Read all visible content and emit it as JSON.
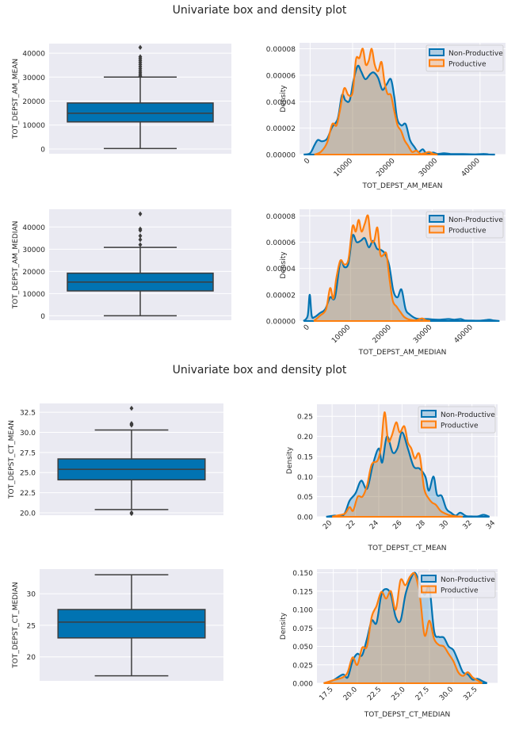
{
  "figures": [
    {
      "suptitle": "Univariate box and density plot"
    },
    {
      "suptitle": "Univariate box and density plot"
    }
  ],
  "colors": {
    "plot_bg": "#eaeaf2",
    "grid": "#ffffff",
    "box_fill": "#0173b2",
    "box_line": "#3d3d3d",
    "non_productive": "#0173b2",
    "productive": "#ff7f0e",
    "text": "#262626"
  },
  "chart_data": [
    {
      "id": "box-am-mean",
      "type": "box",
      "ylabel": "TOT_DEPST_AM_MEAN",
      "xlabel": "",
      "ylim": [
        -2000,
        44000
      ],
      "yticks": [
        0,
        10000,
        20000,
        30000,
        40000
      ],
      "ytick_labels": [
        "0",
        "10000",
        "20000",
        "30000",
        "40000"
      ],
      "stats": {
        "whisker_low": 200,
        "q1": 11300,
        "median": 14900,
        "q3": 19200,
        "whisker_high": 30000
      },
      "outliers": [
        30400,
        31000,
        31800,
        32600,
        33500,
        34400,
        35300,
        36200,
        37000,
        37800,
        38500,
        42400
      ]
    },
    {
      "id": "density-am-mean",
      "type": "area",
      "title": "",
      "xlabel": "TOT_DEPST_AM_MEAN",
      "ylabel": "Density",
      "xlim": [
        -2500,
        46000
      ],
      "ylim": [
        0,
        8.45e-05
      ],
      "xticks": [
        0,
        10000,
        20000,
        30000,
        40000
      ],
      "xtick_labels": [
        "0",
        "10000",
        "20000",
        "30000",
        "40000"
      ],
      "yticks": [
        0,
        2e-05,
        4e-05,
        6e-05,
        8e-05
      ],
      "ytick_labels": [
        "0.00000",
        "0.00002",
        "0.00004",
        "0.00006",
        "0.00008"
      ],
      "legend": {
        "entries": [
          "Non-Productive",
          "Productive"
        ],
        "position": "upper-right"
      },
      "series": [
        {
          "name": "Non-Productive",
          "x": [
            -1500,
            0,
            1000,
            1800,
            2800,
            4000,
            5200,
            6500,
            7500,
            8300,
            9300,
            10200,
            11200,
            12000,
            13000,
            14200,
            15000,
            16000,
            17000,
            18000,
            19000,
            19800,
            20500,
            21500,
            22500,
            23500,
            24500,
            25500,
            26500,
            27300,
            28200,
            29000,
            30000,
            31500,
            33000,
            35000,
            37000,
            39000,
            41000,
            42000,
            43500
          ],
          "y": [
            0,
            1e-06,
            7e-06,
            1.1e-05,
            1e-05,
            1.2e-05,
            2.1e-05,
            2.7e-05,
            4.5e-05,
            4.1e-05,
            4.1e-05,
            5.6e-05,
            6.7e-05,
            6.3e-05,
            5.7e-05,
            6.1e-05,
            6.2e-05,
            5.8e-05,
            4.9e-05,
            5.3e-05,
            5.7e-05,
            4.4e-05,
            2.7e-05,
            2.2e-05,
            2.3e-05,
            1.1e-05,
            6e-06,
            2e-06,
            4e-06,
            1e-06,
            1e-06,
            1.5e-06,
            5e-07,
            1e-06,
            5e-07,
            4e-07,
            3e-07,
            2e-07,
            5e-07,
            1e-07,
            0
          ]
        },
        {
          "name": "Productive",
          "x": [
            1000,
            2500,
            4000,
            5200,
            6200,
            7000,
            8000,
            9000,
            10000,
            10800,
            11600,
            12400,
            13100,
            13800,
            14500,
            15200,
            16000,
            16800,
            17500,
            18200,
            19000,
            19800,
            20600,
            21400,
            22200,
            23000,
            24000,
            25000,
            26000,
            27000,
            28000,
            29000,
            30000
          ],
          "y": [
            0,
            2e-06,
            9e-06,
            2.3e-05,
            2.2e-05,
            3.3e-05,
            5e-05,
            4.5e-05,
            4.7e-05,
            7.2e-05,
            7.3e-05,
            8e-05,
            6.8e-05,
            7.1e-05,
            8e-05,
            6.8e-05,
            6.3e-05,
            7e-05,
            5.5e-05,
            4.6e-05,
            4.5e-05,
            3.3e-05,
            2.2e-05,
            1.8e-05,
            1.1e-05,
            7e-06,
            2e-06,
            3e-06,
            5e-07,
            1e-06,
            2e-06,
            5e-07,
            0
          ]
        }
      ]
    },
    {
      "id": "box-am-median",
      "type": "box",
      "ylabel": "TOT_DEPST_AM_MEDIAN",
      "xlabel": "",
      "ylim": [
        -2000,
        48000
      ],
      "yticks": [
        0,
        10000,
        20000,
        30000,
        40000
      ],
      "ytick_labels": [
        "0",
        "10000",
        "20000",
        "30000",
        "40000"
      ],
      "stats": {
        "whisker_low": 0,
        "q1": 11200,
        "median": 15200,
        "q3": 19200,
        "whisker_high": 30800
      },
      "outliers": [
        32000,
        34300,
        36000,
        38500,
        39100,
        45900
      ]
    },
    {
      "id": "density-am-median",
      "type": "area",
      "title": "",
      "xlabel": "TOT_DEPST_AM_MEDIAN",
      "ylabel": "Density",
      "xlim": [
        -2500,
        48000
      ],
      "ylim": [
        0,
        8.5e-05
      ],
      "xticks": [
        0,
        10000,
        20000,
        30000,
        40000
      ],
      "xtick_labels": [
        "0",
        "10000",
        "20000",
        "30000",
        "40000"
      ],
      "yticks": [
        0,
        2e-05,
        4e-05,
        6e-05,
        8e-05
      ],
      "ytick_labels": [
        "0.00000",
        "0.00002",
        "0.00004",
        "0.00006",
        "0.00008"
      ],
      "legend": {
        "entries": [
          "Non-Productive",
          "Productive"
        ],
        "position": "upper-right"
      },
      "series": [
        {
          "name": "Non-Productive",
          "x": [
            -1500,
            -500,
            0,
            500,
            1200,
            2500,
            3800,
            5000,
            6200,
            7500,
            8500,
            9500,
            10500,
            11500,
            12500,
            13500,
            14500,
            15500,
            16500,
            17500,
            18500,
            19500,
            20500,
            21500,
            22500,
            23500,
            24500,
            26000,
            27500,
            29000,
            30000,
            32000,
            34000,
            35500,
            37000,
            38000,
            40000,
            42000,
            44000,
            45000,
            46500
          ],
          "y": [
            0,
            4e-06,
            2e-05,
            4e-06,
            3e-06,
            6e-06,
            9e-06,
            1.8e-05,
            1.8e-05,
            4.5e-05,
            4.1e-05,
            4.4e-05,
            6.5e-05,
            6e-05,
            6.1e-05,
            6.3e-05,
            5.6e-05,
            6.1e-05,
            5.5e-05,
            5.4e-05,
            5.1e-05,
            4.2e-05,
            2.3e-05,
            1.8e-05,
            2.4e-05,
            9e-06,
            5e-06,
            2e-06,
            1.5e-06,
            1.5e-06,
            1.2e-06,
            1e-06,
            1.5e-06,
            1e-06,
            1.5e-06,
            5e-07,
            3e-07,
            3e-07,
            1e-06,
            5e-07,
            0
          ]
        },
        {
          "name": "Productive",
          "x": [
            1000,
            2500,
            4000,
            5000,
            5800,
            6500,
            7500,
            8500,
            9500,
            10500,
            11300,
            12000,
            12700,
            13500,
            14300,
            15000,
            15800,
            16600,
            17300,
            18000,
            18800,
            19600,
            20400,
            21300,
            22200,
            23200,
            24500,
            26000,
            27500,
            28500,
            29500
          ],
          "y": [
            0,
            4e-06,
            9e-06,
            2.5e-05,
            1.7e-05,
            3.2e-05,
            4.6e-05,
            4.3e-05,
            4.7e-05,
            7.2e-05,
            6.8e-05,
            7.7e-05,
            6.8e-05,
            7.4e-05,
            8e-05,
            6.2e-05,
            6.1e-05,
            7.1e-05,
            5.1e-05,
            5e-05,
            5.1e-05,
            3.1e-05,
            1.5e-05,
            1.1e-05,
            7e-06,
            3e-06,
            1e-06,
            5e-07,
            2e-06,
            5e-07,
            0
          ]
        }
      ]
    },
    {
      "id": "box-ct-mean",
      "type": "box",
      "ylabel": "TOT_DEPST_CT_MEAN",
      "xlabel": "",
      "ylim": [
        19.7,
        33.6
      ],
      "yticks": [
        20.0,
        22.5,
        25.0,
        27.5,
        30.0,
        32.5
      ],
      "ytick_labels": [
        "20.0",
        "22.5",
        "25.0",
        "27.5",
        "30.0",
        "32.5"
      ],
      "stats": {
        "whisker_low": 20.4,
        "q1": 24.1,
        "median": 25.4,
        "q3": 26.7,
        "whisker_high": 30.3
      },
      "outliers": [
        20.0,
        19.9,
        30.9,
        31.0,
        31.1,
        33.0
      ]
    },
    {
      "id": "density-ct-mean",
      "type": "area",
      "title": "",
      "xlabel": "TOT_DEPST_CT_MEAN",
      "ylabel": "Density",
      "xlim": [
        18.7,
        34.2
      ],
      "ylim": [
        0,
        0.28
      ],
      "xticks": [
        20,
        22,
        24,
        26,
        28,
        30,
        32,
        34
      ],
      "xtick_labels": [
        "20",
        "22",
        "24",
        "26",
        "28",
        "30",
        "32",
        "34"
      ],
      "yticks": [
        0.0,
        0.05,
        0.1,
        0.15,
        0.2,
        0.25
      ],
      "ytick_labels": [
        "0.00",
        "0.05",
        "0.10",
        "0.15",
        "0.20",
        "0.25"
      ],
      "legend": {
        "entries": [
          "Non-Productive",
          "Productive"
        ],
        "position": "upper-right"
      },
      "series": [
        {
          "name": "Non-Productive",
          "x": [
            19.5,
            20.2,
            21.0,
            21.5,
            22.0,
            22.5,
            23.0,
            23.5,
            24.0,
            24.3,
            24.7,
            25.2,
            25.6,
            26.0,
            26.5,
            27.0,
            27.5,
            28.0,
            28.3,
            28.7,
            29.0,
            29.4,
            29.8,
            30.2,
            30.6,
            31.0,
            31.5,
            32.0,
            32.5,
            33.0,
            33.5
          ],
          "y": [
            0,
            0.003,
            0.005,
            0.04,
            0.058,
            0.09,
            0.07,
            0.13,
            0.17,
            0.135,
            0.2,
            0.16,
            0.17,
            0.21,
            0.17,
            0.125,
            0.12,
            0.1,
            0.065,
            0.1,
            0.055,
            0.052,
            0.02,
            0.01,
            0.003,
            0.01,
            0.002,
            0.001,
            0.001,
            0.005,
            0
          ]
        },
        {
          "name": "Productive",
          "x": [
            20.0,
            20.6,
            21.1,
            21.5,
            21.8,
            22.2,
            22.6,
            23.0,
            23.4,
            23.9,
            24.2,
            24.5,
            24.8,
            25.1,
            25.5,
            25.8,
            26.2,
            26.5,
            26.8,
            27.1,
            27.5,
            27.9,
            28.3,
            28.6,
            28.9,
            29.3,
            29.7,
            30.2,
            30.7,
            31.2
          ],
          "y": [
            0,
            0.004,
            0.008,
            0.024,
            0.015,
            0.05,
            0.05,
            0.078,
            0.13,
            0.14,
            0.175,
            0.26,
            0.19,
            0.2,
            0.235,
            0.21,
            0.225,
            0.185,
            0.17,
            0.145,
            0.155,
            0.07,
            0.045,
            0.035,
            0.03,
            0.015,
            0.008,
            0.003,
            0.001,
            0
          ]
        }
      ]
    },
    {
      "id": "box-ct-median",
      "type": "box",
      "ylabel": "TOT_DEPST_CT_MEDIAN",
      "xlabel": "",
      "ylim": [
        16.2,
        33.9
      ],
      "yticks": [
        20,
        25,
        30
      ],
      "ytick_labels": [
        "20",
        "25",
        "30"
      ],
      "stats": {
        "whisker_low": 17.0,
        "q1": 23.0,
        "median": 25.5,
        "q3": 27.5,
        "whisker_high": 33.0
      },
      "outliers": []
    },
    {
      "id": "density-ct-median",
      "type": "area",
      "title": "",
      "xlabel": "TOT_DEPST_CT_MEDIAN",
      "ylabel": "Density",
      "xlim": [
        15.8,
        34.6
      ],
      "ylim": [
        0,
        0.155
      ],
      "xticks": [
        17.5,
        20.0,
        22.5,
        25.0,
        27.5,
        30.0,
        32.5
      ],
      "xtick_labels": [
        "17.5",
        "20.0",
        "22.5",
        "25.0",
        "27.5",
        "30.0",
        "32.5"
      ],
      "yticks": [
        0.0,
        0.025,
        0.05,
        0.075,
        0.1,
        0.125,
        0.15
      ],
      "ytick_labels": [
        "0.000",
        "0.025",
        "0.050",
        "0.075",
        "0.100",
        "0.125",
        "0.150"
      ],
      "legend": {
        "entries": [
          "Non-Productive",
          "Productive"
        ],
        "position": "upper-right"
      },
      "series": [
        {
          "name": "Non-Productive",
          "x": [
            16.5,
            17.5,
            18.5,
            19.0,
            19.5,
            20.0,
            20.5,
            21.0,
            21.5,
            22.0,
            22.5,
            23.0,
            23.5,
            24.0,
            24.5,
            25.0,
            25.5,
            26.0,
            26.5,
            27.0,
            27.5,
            28.0,
            28.5,
            29.0,
            29.5,
            30.0,
            30.5,
            31.0,
            31.5,
            32.0,
            32.5,
            33.0,
            33.5
          ],
          "y": [
            0,
            0.004,
            0.012,
            0.008,
            0.03,
            0.04,
            0.038,
            0.06,
            0.085,
            0.082,
            0.12,
            0.128,
            0.12,
            0.09,
            0.085,
            0.12,
            0.14,
            0.15,
            0.135,
            0.12,
            0.13,
            0.07,
            0.063,
            0.062,
            0.05,
            0.045,
            0.03,
            0.015,
            0.012,
            0.005,
            0.006,
            0.003,
            0
          ]
        },
        {
          "name": "Productive",
          "x": [
            16.5,
            17.5,
            18.5,
            19.0,
            19.5,
            20.0,
            20.5,
            21.0,
            21.5,
            22.0,
            22.5,
            23.0,
            23.5,
            24.0,
            24.5,
            25.0,
            25.5,
            26.0,
            26.5,
            27.0,
            27.5,
            28.0,
            28.5,
            29.0,
            29.5,
            30.0,
            30.5,
            31.0,
            31.5,
            32.0,
            32.5,
            33.0
          ],
          "y": [
            0,
            0.004,
            0.008,
            0.015,
            0.035,
            0.025,
            0.048,
            0.05,
            0.09,
            0.105,
            0.124,
            0.115,
            0.125,
            0.1,
            0.14,
            0.133,
            0.145,
            0.148,
            0.12,
            0.065,
            0.085,
            0.06,
            0.052,
            0.05,
            0.04,
            0.03,
            0.015,
            0.01,
            0.015,
            0.008,
            0.004,
            0
          ]
        }
      ]
    }
  ]
}
